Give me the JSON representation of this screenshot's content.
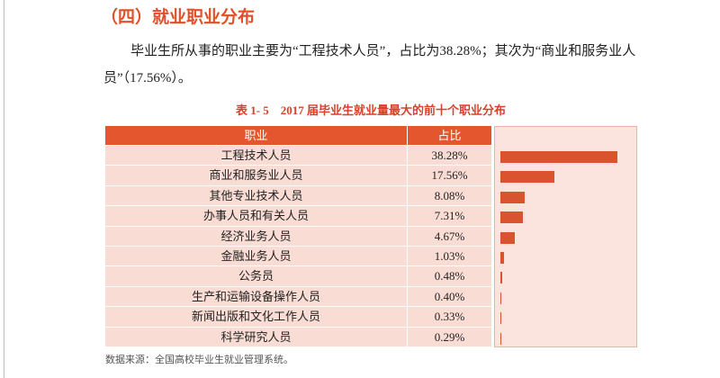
{
  "heading": "（四）就业职业分布",
  "paragraph": "毕业生所从事的职业主要为“工程技术人员”，占比为38.28%；其次为“商业和服务业人员”（17.56%）。",
  "table": {
    "caption": "表 1- 5　2017 届毕业生就业量最大的前十个职业分布",
    "header": [
      "职业",
      "占比"
    ],
    "rows": [
      {
        "name": "工程技术人员",
        "value": 38.28,
        "label": "38.28%"
      },
      {
        "name": "商业和服务业人员",
        "value": 17.56,
        "label": "17.56%"
      },
      {
        "name": "其他专业技术人员",
        "value": 8.08,
        "label": "8.08%"
      },
      {
        "name": "办事人员和有关人员",
        "value": 7.31,
        "label": "7.31%"
      },
      {
        "name": "经济业务人员",
        "value": 4.67,
        "label": "4.67%"
      },
      {
        "name": "金融业务人员",
        "value": 1.03,
        "label": "1.03%"
      },
      {
        "name": "公务员",
        "value": 0.48,
        "label": "0.48%"
      },
      {
        "name": "生产和运输设备操作人员",
        "value": 0.4,
        "label": "0.40%"
      },
      {
        "name": "新闻出版和文化工作人员",
        "value": 0.33,
        "label": "0.33%"
      },
      {
        "name": "科学研究人员",
        "value": 0.29,
        "label": "0.29%"
      }
    ],
    "source": "数据来源：全国高校毕业生就业管理系统。"
  }
}
